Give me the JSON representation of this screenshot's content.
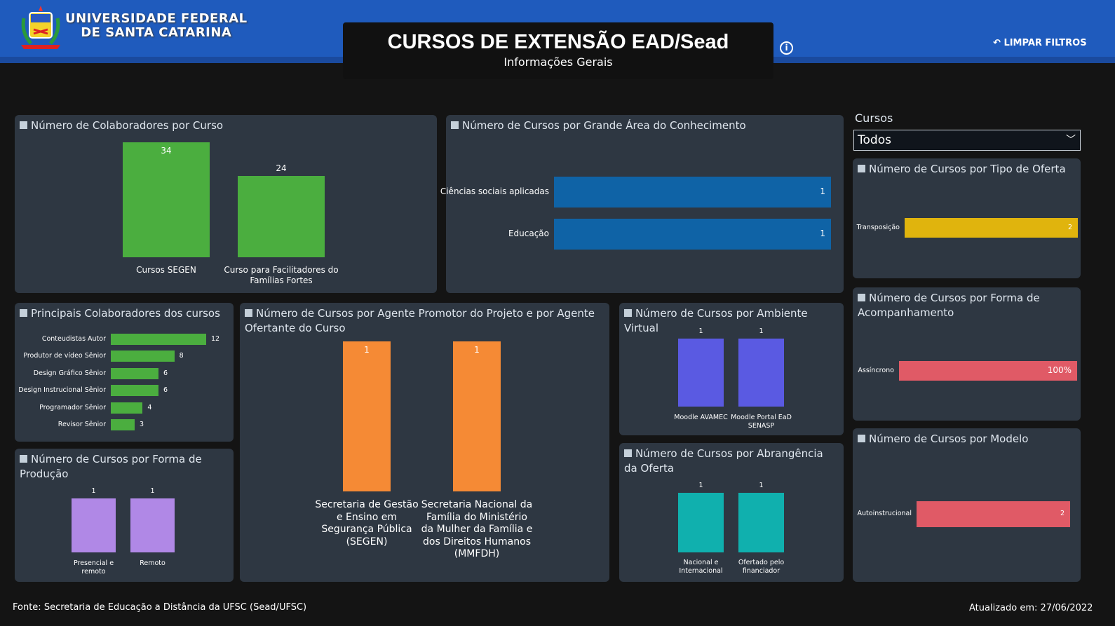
{
  "header": {
    "university_line1": "UNIVERSIDADE FEDERAL",
    "university_line2": "DE SANTA CATARINA",
    "title": "CURSOS DE EXTENSÃO EAD/Sead",
    "subtitle": "Informações Gerais",
    "info_icon": "info-icon",
    "clear_filters": "LIMPAR FILTROS",
    "clear_icon": "undo-arrow-icon",
    "brand_color": "#1f5bbd"
  },
  "slicer": {
    "label": "Cursos",
    "value": "Todos"
  },
  "footer": {
    "source": "Fonte: Secretaria de Educação a Distância da UFSC (Sead/UFSC)",
    "updated": "Atualizado em: 27/06/2022"
  },
  "chart_data": [
    {
      "id": "c1",
      "type": "bar",
      "title": "Número de Colaboradores por Curso",
      "categories": [
        "Cursos SEGEN",
        "Curso para Facilitadores do Famílias Fortes"
      ],
      "values": [
        34,
        24
      ],
      "labels": [
        "34",
        "24"
      ],
      "color": "#4bae3f"
    },
    {
      "id": "c2",
      "type": "bar",
      "orientation": "horizontal",
      "title": "Número de Cursos por Grande Área do Conhecimento",
      "categories": [
        "Ciências sociais aplicadas",
        "Educação"
      ],
      "values": [
        1,
        1
      ],
      "labels": [
        "1",
        "1"
      ],
      "color": "#0f63a6"
    },
    {
      "id": "c3",
      "type": "bar",
      "orientation": "horizontal",
      "title": "Número de Cursos por Tipo de Oferta",
      "categories": [
        "Transposição"
      ],
      "values": [
        2
      ],
      "labels": [
        "2"
      ],
      "color": "#e0b40d"
    },
    {
      "id": "c4",
      "type": "bar",
      "orientation": "horizontal",
      "title": "Número de Cursos por Forma de Acompanhamento",
      "categories": [
        "Assíncrono"
      ],
      "values": [
        100
      ],
      "labels": [
        "100%"
      ],
      "color": "#e05a66"
    },
    {
      "id": "c5",
      "type": "bar",
      "orientation": "horizontal",
      "title": "Número de Cursos por Modelo",
      "categories": [
        "Autoinstrucional"
      ],
      "values": [
        2
      ],
      "labels": [
        "2"
      ],
      "color": "#e05a66"
    },
    {
      "id": "c6",
      "type": "bar",
      "orientation": "horizontal",
      "title": "Principais Colaboradores dos cursos",
      "categories": [
        "Conteudistas Autor",
        "Produtor de vídeo Sênior",
        "Design Gráfico Sênior",
        "Design Instrucional Sênior",
        "Programador Sênior",
        "Revisor Sênior"
      ],
      "values": [
        12,
        8,
        6,
        6,
        4,
        3
      ],
      "labels": [
        "12",
        "8",
        "6",
        "6",
        "4",
        "3"
      ],
      "color": "#4bae3f"
    },
    {
      "id": "c7",
      "type": "bar",
      "title": "Número de Cursos por Forma de Produção",
      "categories": [
        "Presencial e remoto",
        "Remoto"
      ],
      "values": [
        1,
        1
      ],
      "labels": [
        "1",
        "1"
      ],
      "color": "#b088e6"
    },
    {
      "id": "c8",
      "type": "bar",
      "title": "Número de Cursos por Agente Promotor do Projeto e por Agente Ofertante do Curso",
      "categories": [
        "Secretaria de Gestão e Ensino em Segurança Pública (SEGEN)",
        "Secretaria Nacional da Família do Ministério da Mulher da Família e dos Direitos Humanos (MMFDH)"
      ],
      "values": [
        1,
        1
      ],
      "labels": [
        "1",
        "1"
      ],
      "color": "#f58a35"
    },
    {
      "id": "c9",
      "type": "bar",
      "title": "Número de Cursos por Ambiente Virtual",
      "categories": [
        "Moodle AVAMEC",
        "Moodle Portal EaD SENASP"
      ],
      "values": [
        1,
        1
      ],
      "labels": [
        "1",
        "1"
      ],
      "color": "#5a5ae2"
    },
    {
      "id": "c10",
      "type": "bar",
      "title": "Número de Cursos por Abrangência da Oferta",
      "categories": [
        "Nacional e Internacional",
        "Ofertado pelo financiador"
      ],
      "values": [
        1,
        1
      ],
      "labels": [
        "1",
        "1"
      ],
      "color": "#10b0ae"
    }
  ]
}
